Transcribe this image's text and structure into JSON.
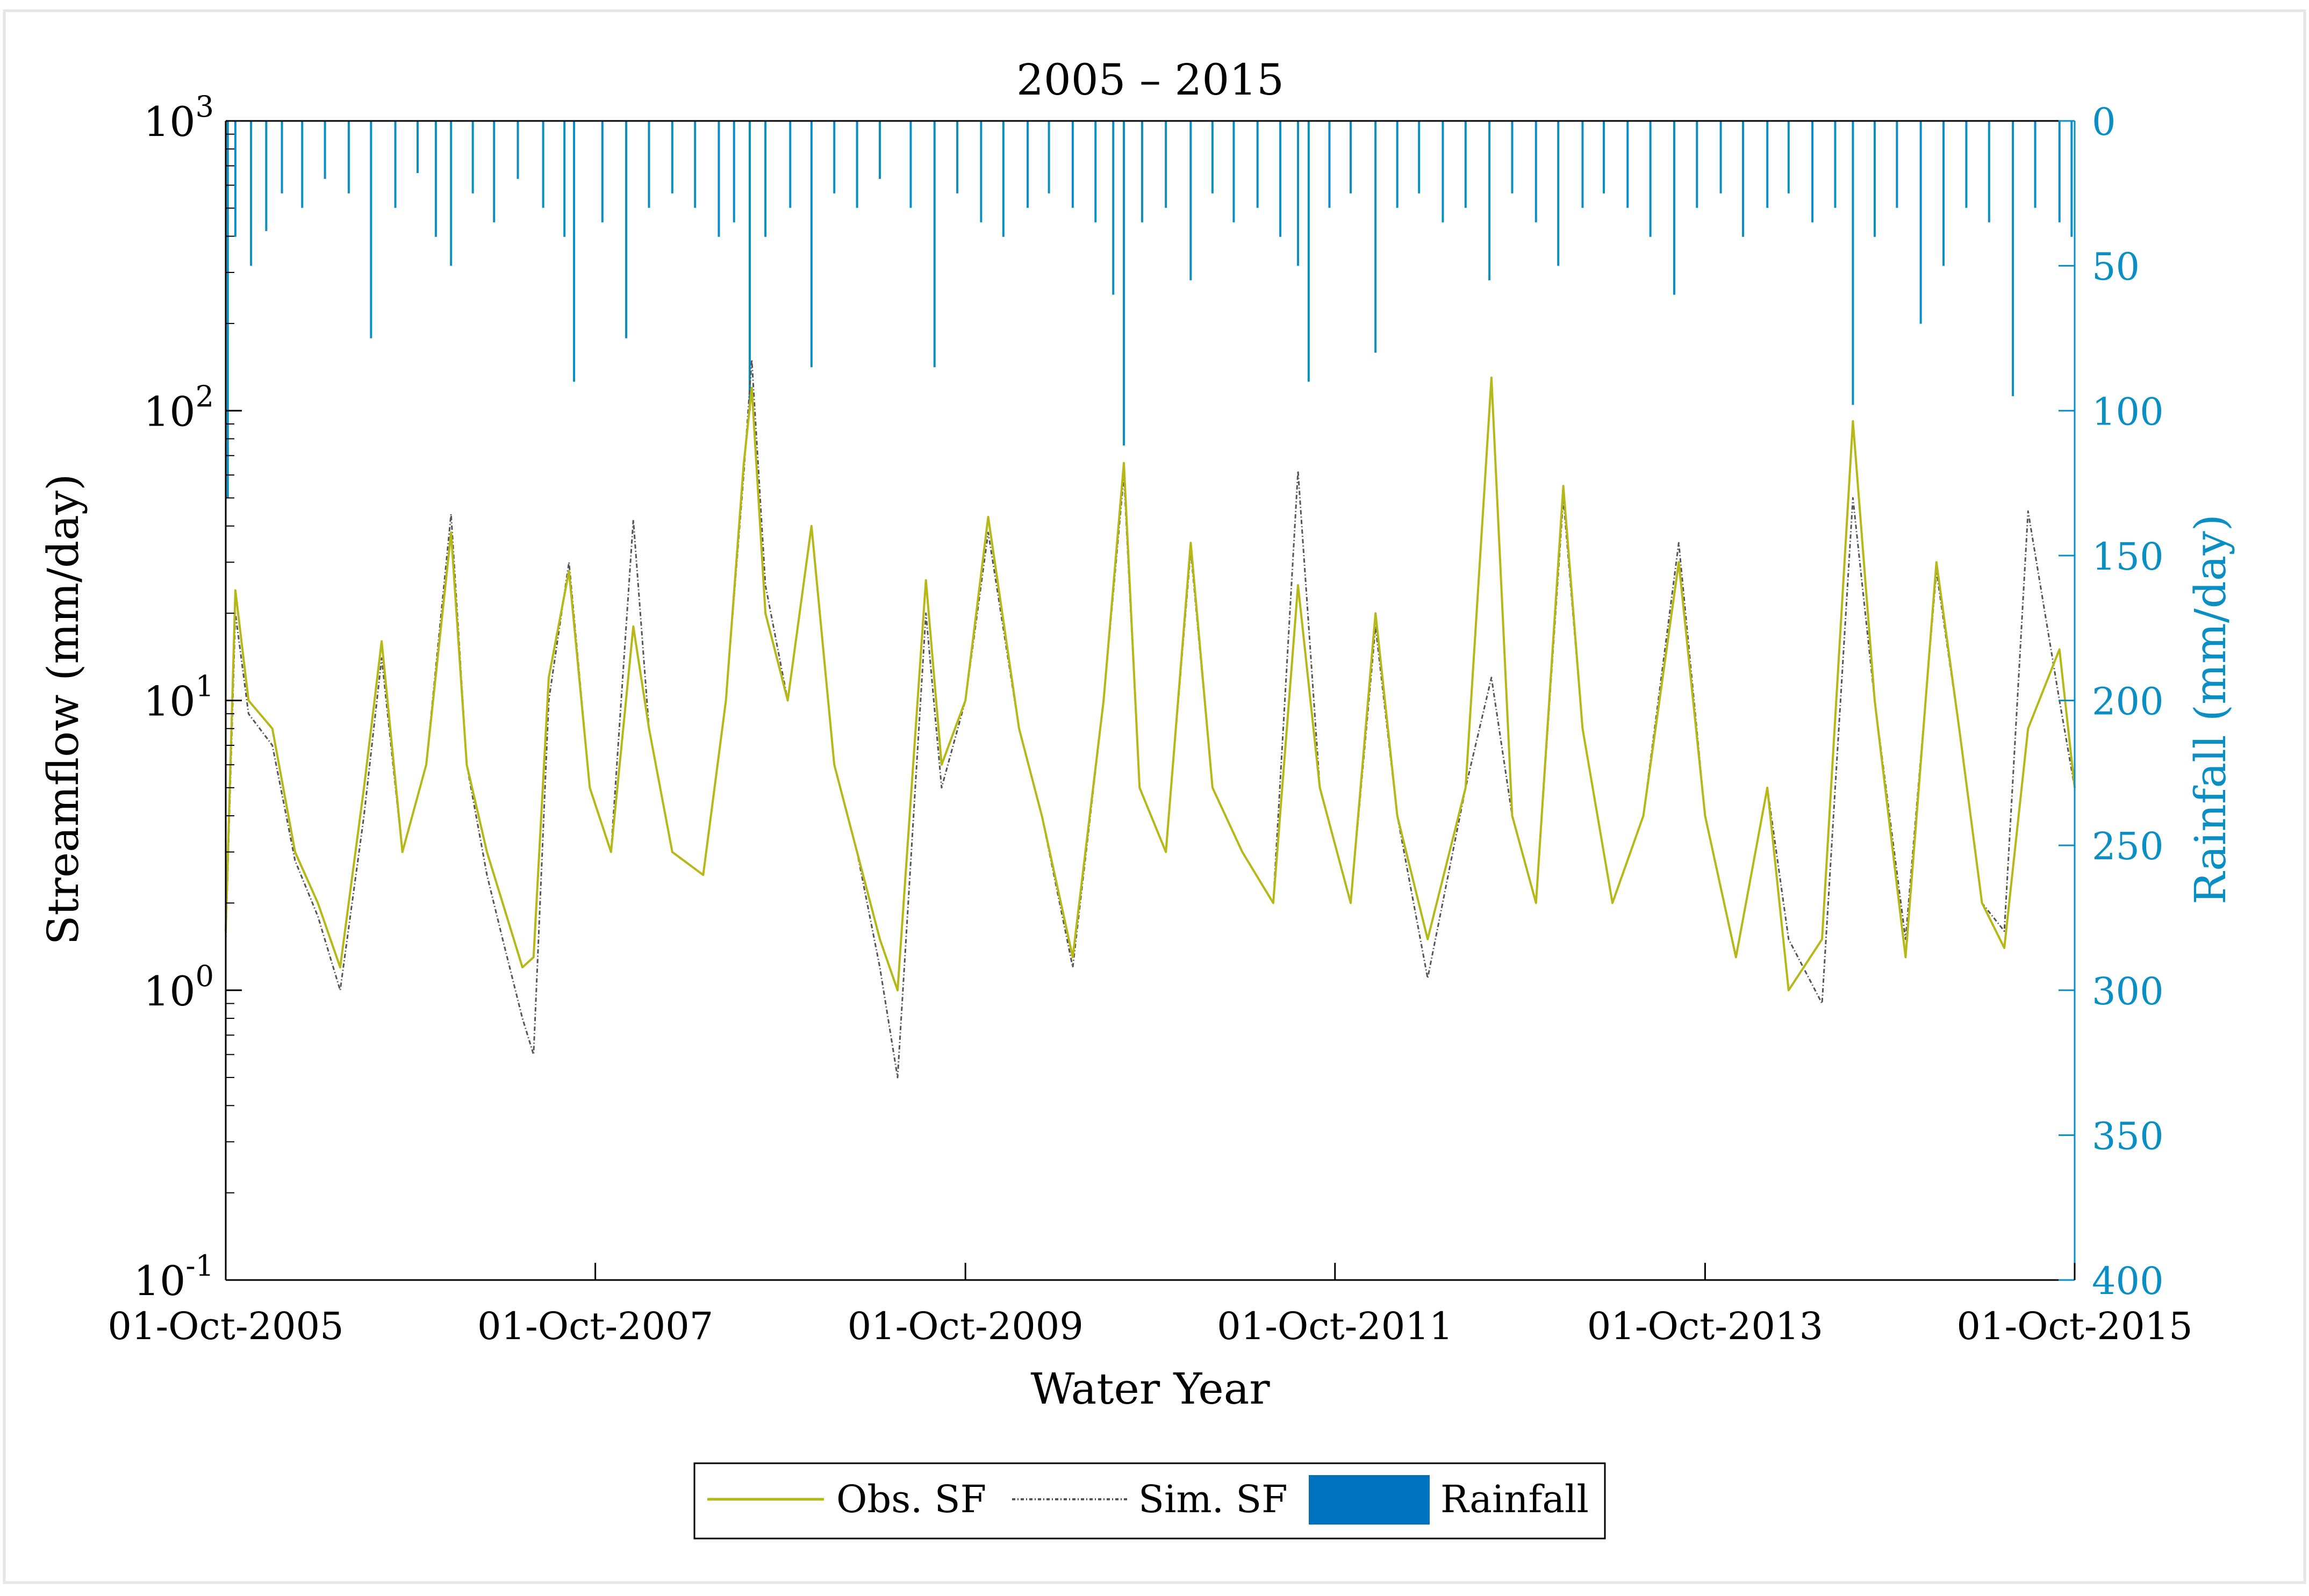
{
  "chart_data": {
    "type": "line",
    "title": "2005 – 2015",
    "xlabel": "Water Year",
    "ylabel_left": "Streamflow (mm/day)",
    "ylabel_right": "Rainfall (mm/day)",
    "x_range": [
      "2005-10-01",
      "2015-10-01"
    ],
    "x_ticks": [
      "01-Oct-2005",
      "01-Oct-2007",
      "01-Oct-2009",
      "01-Oct-2011",
      "01-Oct-2013",
      "01-Oct-2015"
    ],
    "y_left_scale": "log",
    "y_left_range": [
      0.1,
      1000
    ],
    "y_left_ticks": [
      {
        "base": "10",
        "exp": "-1",
        "value": 0.1
      },
      {
        "base": "10",
        "exp": "0",
        "value": 1
      },
      {
        "base": "10",
        "exp": "1",
        "value": 10
      },
      {
        "base": "10",
        "exp": "2",
        "value": 100
      },
      {
        "base": "10",
        "exp": "3",
        "value": 1000
      }
    ],
    "y_right_range": [
      0,
      400
    ],
    "y_right_reversed": true,
    "y_right_ticks": [
      "0",
      "50",
      "100",
      "150",
      "200",
      "250",
      "300",
      "350",
      "400"
    ],
    "grid": false,
    "legend_position": "bottom-center",
    "colors": {
      "observed": "#b5b817",
      "simulated": "#555555",
      "rainfall": "#0a8fc4",
      "rainfall_legend": "#0072bd",
      "right_axis": "#0a8fc4"
    },
    "series": [
      {
        "name": "Obs. SF",
        "kind": "line",
        "axis": "left",
        "points": [
          [
            "2005-10-01",
            1.6
          ],
          [
            "2005-10-20",
            24
          ],
          [
            "2005-11-15",
            10
          ],
          [
            "2006-01-01",
            8
          ],
          [
            "2006-02-15",
            3
          ],
          [
            "2006-04-01",
            2
          ],
          [
            "2006-05-15",
            1.2
          ],
          [
            "2006-07-01",
            5
          ],
          [
            "2006-08-05",
            16
          ],
          [
            "2006-09-15",
            3
          ],
          [
            "2006-11-01",
            6
          ],
          [
            "2006-12-20",
            38
          ],
          [
            "2007-01-20",
            6
          ],
          [
            "2007-03-01",
            3
          ],
          [
            "2007-04-01",
            2
          ],
          [
            "2007-05-10",
            1.2
          ],
          [
            "2007-06-01",
            1.3
          ],
          [
            "2007-07-01",
            12
          ],
          [
            "2007-08-10",
            28
          ],
          [
            "2007-09-20",
            5
          ],
          [
            "2007-11-01",
            3
          ],
          [
            "2007-12-15",
            18
          ],
          [
            "2008-01-15",
            8
          ],
          [
            "2008-03-01",
            3
          ],
          [
            "2008-05-01",
            2.5
          ],
          [
            "2008-06-15",
            10
          ],
          [
            "2008-07-20",
            65
          ],
          [
            "2008-08-05",
            120
          ],
          [
            "2008-09-01",
            20
          ],
          [
            "2008-10-15",
            10
          ],
          [
            "2008-12-01",
            40
          ],
          [
            "2009-01-15",
            6
          ],
          [
            "2009-03-01",
            3
          ],
          [
            "2009-04-15",
            1.5
          ],
          [
            "2009-05-20",
            1.0
          ],
          [
            "2009-07-15",
            26
          ],
          [
            "2009-08-15",
            6
          ],
          [
            "2009-10-01",
            10
          ],
          [
            "2009-11-15",
            43
          ],
          [
            "2010-01-15",
            8
          ],
          [
            "2010-03-01",
            4
          ],
          [
            "2010-05-01",
            1.3
          ],
          [
            "2010-07-01",
            10
          ],
          [
            "2010-08-10",
            66
          ],
          [
            "2010-09-10",
            5
          ],
          [
            "2010-11-01",
            3
          ],
          [
            "2010-12-20",
            35
          ],
          [
            "2011-02-01",
            5
          ],
          [
            "2011-04-01",
            3
          ],
          [
            "2011-06-01",
            2
          ],
          [
            "2011-07-20",
            25
          ],
          [
            "2011-09-01",
            5
          ],
          [
            "2011-11-01",
            2
          ],
          [
            "2011-12-20",
            20
          ],
          [
            "2012-02-01",
            4
          ],
          [
            "2012-04-01",
            1.5
          ],
          [
            "2012-06-15",
            5
          ],
          [
            "2012-08-05",
            130
          ],
          [
            "2012-09-15",
            4
          ],
          [
            "2012-11-01",
            2
          ],
          [
            "2012-12-25",
            55
          ],
          [
            "2013-02-01",
            8
          ],
          [
            "2013-04-01",
            2
          ],
          [
            "2013-06-01",
            4
          ],
          [
            "2013-08-10",
            30
          ],
          [
            "2013-10-01",
            4
          ],
          [
            "2013-12-01",
            1.3
          ],
          [
            "2014-02-01",
            5
          ],
          [
            "2014-03-15",
            1.0
          ],
          [
            "2014-05-20",
            1.5
          ],
          [
            "2014-07-20",
            92
          ],
          [
            "2014-09-01",
            10
          ],
          [
            "2014-11-01",
            1.3
          ],
          [
            "2015-01-01",
            30
          ],
          [
            "2015-02-15",
            8
          ],
          [
            "2015-04-01",
            2
          ],
          [
            "2015-05-15",
            1.4
          ],
          [
            "2015-07-01",
            8
          ],
          [
            "2015-09-01",
            15
          ],
          [
            "2015-10-01",
            5
          ]
        ]
      },
      {
        "name": "Sim. SF",
        "kind": "line",
        "axis": "left",
        "points": [
          [
            "2005-10-01",
            1.5
          ],
          [
            "2005-10-20",
            20
          ],
          [
            "2005-11-15",
            9
          ],
          [
            "2006-01-01",
            7
          ],
          [
            "2006-02-15",
            2.8
          ],
          [
            "2006-04-01",
            1.8
          ],
          [
            "2006-05-15",
            1.0
          ],
          [
            "2006-07-01",
            4
          ],
          [
            "2006-08-05",
            14
          ],
          [
            "2006-09-15",
            3
          ],
          [
            "2006-11-01",
            6
          ],
          [
            "2006-12-20",
            44
          ],
          [
            "2007-01-20",
            6
          ],
          [
            "2007-03-01",
            2.5
          ],
          [
            "2007-04-01",
            1.5
          ],
          [
            "2007-05-10",
            0.8
          ],
          [
            "2007-06-01",
            0.6
          ],
          [
            "2007-07-01",
            10
          ],
          [
            "2007-08-10",
            30
          ],
          [
            "2007-09-20",
            5
          ],
          [
            "2007-11-01",
            3
          ],
          [
            "2007-12-15",
            42
          ],
          [
            "2008-01-15",
            8
          ],
          [
            "2008-03-01",
            3
          ],
          [
            "2008-05-01",
            2.5
          ],
          [
            "2008-06-15",
            10
          ],
          [
            "2008-07-20",
            60
          ],
          [
            "2008-08-05",
            150
          ],
          [
            "2008-09-01",
            25
          ],
          [
            "2008-10-15",
            10
          ],
          [
            "2008-12-01",
            40
          ],
          [
            "2009-01-15",
            6
          ],
          [
            "2009-03-01",
            3
          ],
          [
            "2009-04-15",
            1.2
          ],
          [
            "2009-05-20",
            0.5
          ],
          [
            "2009-07-15",
            20
          ],
          [
            "2009-08-15",
            5
          ],
          [
            "2009-10-01",
            10
          ],
          [
            "2009-11-15",
            38
          ],
          [
            "2010-01-15",
            8
          ],
          [
            "2010-03-01",
            4
          ],
          [
            "2010-05-01",
            1.2
          ],
          [
            "2010-07-01",
            10
          ],
          [
            "2010-08-10",
            60
          ],
          [
            "2010-09-10",
            5
          ],
          [
            "2010-11-01",
            3
          ],
          [
            "2010-12-20",
            33
          ],
          [
            "2011-02-01",
            5
          ],
          [
            "2011-04-01",
            3
          ],
          [
            "2011-06-01",
            2
          ],
          [
            "2011-07-20",
            62
          ],
          [
            "2011-09-01",
            5
          ],
          [
            "2011-11-01",
            2
          ],
          [
            "2011-12-20",
            18
          ],
          [
            "2012-02-01",
            4
          ],
          [
            "2012-04-01",
            1.1
          ],
          [
            "2012-06-15",
            5
          ],
          [
            "2012-08-05",
            12
          ],
          [
            "2012-09-15",
            4
          ],
          [
            "2012-11-01",
            2
          ],
          [
            "2012-12-25",
            50
          ],
          [
            "2013-02-01",
            8
          ],
          [
            "2013-04-01",
            2
          ],
          [
            "2013-06-01",
            4
          ],
          [
            "2013-08-10",
            35
          ],
          [
            "2013-10-01",
            4
          ],
          [
            "2013-12-01",
            1.3
          ],
          [
            "2014-02-01",
            5
          ],
          [
            "2014-03-15",
            1.5
          ],
          [
            "2014-05-20",
            0.9
          ],
          [
            "2014-07-20",
            50
          ],
          [
            "2014-09-01",
            10
          ],
          [
            "2014-11-01",
            1.5
          ],
          [
            "2015-01-01",
            28
          ],
          [
            "2015-02-15",
            8
          ],
          [
            "2015-04-01",
            2
          ],
          [
            "2015-05-15",
            1.6
          ],
          [
            "2015-07-01",
            45
          ],
          [
            "2015-09-01",
            10
          ],
          [
            "2015-10-01",
            5
          ]
        ]
      },
      {
        "name": "Rainfall",
        "kind": "bar",
        "axis": "right",
        "points": [
          [
            "2005-10-05",
            130
          ],
          [
            "2005-10-20",
            40
          ],
          [
            "2005-11-20",
            50
          ],
          [
            "2005-12-20",
            38
          ],
          [
            "2006-01-20",
            25
          ],
          [
            "2006-03-01",
            30
          ],
          [
            "2006-04-15",
            20
          ],
          [
            "2006-06-01",
            25
          ],
          [
            "2006-07-15",
            75
          ],
          [
            "2006-09-01",
            30
          ],
          [
            "2006-10-15",
            18
          ],
          [
            "2006-11-20",
            40
          ],
          [
            "2006-12-20",
            50
          ],
          [
            "2007-02-01",
            25
          ],
          [
            "2007-03-15",
            35
          ],
          [
            "2007-05-01",
            20
          ],
          [
            "2007-06-20",
            30
          ],
          [
            "2007-08-01",
            40
          ],
          [
            "2007-08-20",
            90
          ],
          [
            "2007-10-15",
            35
          ],
          [
            "2007-12-01",
            75
          ],
          [
            "2008-01-15",
            30
          ],
          [
            "2008-03-01",
            25
          ],
          [
            "2008-04-15",
            30
          ],
          [
            "2008-06-01",
            40
          ],
          [
            "2008-07-01",
            35
          ],
          [
            "2008-08-01",
            100
          ],
          [
            "2008-09-01",
            40
          ],
          [
            "2008-10-20",
            30
          ],
          [
            "2008-12-01",
            85
          ],
          [
            "2009-01-15",
            25
          ],
          [
            "2009-03-01",
            30
          ],
          [
            "2009-04-15",
            20
          ],
          [
            "2009-06-15",
            30
          ],
          [
            "2009-08-01",
            85
          ],
          [
            "2009-09-15",
            25
          ],
          [
            "2009-11-01",
            35
          ],
          [
            "2009-12-15",
            40
          ],
          [
            "2010-02-01",
            30
          ],
          [
            "2010-03-15",
            25
          ],
          [
            "2010-05-01",
            30
          ],
          [
            "2010-06-15",
            35
          ],
          [
            "2010-07-20",
            60
          ],
          [
            "2010-08-10",
            112
          ],
          [
            "2010-09-15",
            35
          ],
          [
            "2010-11-01",
            30
          ],
          [
            "2010-12-20",
            55
          ],
          [
            "2011-02-01",
            25
          ],
          [
            "2011-03-15",
            35
          ],
          [
            "2011-05-01",
            30
          ],
          [
            "2011-06-15",
            40
          ],
          [
            "2011-07-20",
            50
          ],
          [
            "2011-08-10",
            90
          ],
          [
            "2011-09-20",
            30
          ],
          [
            "2011-11-01",
            25
          ],
          [
            "2011-12-20",
            80
          ],
          [
            "2012-02-01",
            30
          ],
          [
            "2012-03-15",
            25
          ],
          [
            "2012-05-01",
            35
          ],
          [
            "2012-06-15",
            30
          ],
          [
            "2012-08-01",
            55
          ],
          [
            "2012-09-15",
            25
          ],
          [
            "2012-11-01",
            35
          ],
          [
            "2012-12-15",
            50
          ],
          [
            "2013-02-01",
            30
          ],
          [
            "2013-03-15",
            25
          ],
          [
            "2013-05-01",
            30
          ],
          [
            "2013-06-15",
            40
          ],
          [
            "2013-08-01",
            60
          ],
          [
            "2013-09-15",
            30
          ],
          [
            "2013-11-01",
            25
          ],
          [
            "2013-12-15",
            40
          ],
          [
            "2014-02-01",
            30
          ],
          [
            "2014-03-15",
            25
          ],
          [
            "2014-05-01",
            35
          ],
          [
            "2014-06-15",
            30
          ],
          [
            "2014-07-20",
            98
          ],
          [
            "2014-09-01",
            40
          ],
          [
            "2014-10-15",
            30
          ],
          [
            "2014-12-01",
            70
          ],
          [
            "2015-01-15",
            50
          ],
          [
            "2015-03-01",
            30
          ],
          [
            "2015-04-15",
            35
          ],
          [
            "2015-06-01",
            95
          ],
          [
            "2015-07-15",
            30
          ],
          [
            "2015-09-01",
            35
          ],
          [
            "2015-09-25",
            40
          ]
        ]
      }
    ],
    "legend": [
      "Obs. SF",
      "Sim. SF",
      "Rainfall"
    ]
  }
}
